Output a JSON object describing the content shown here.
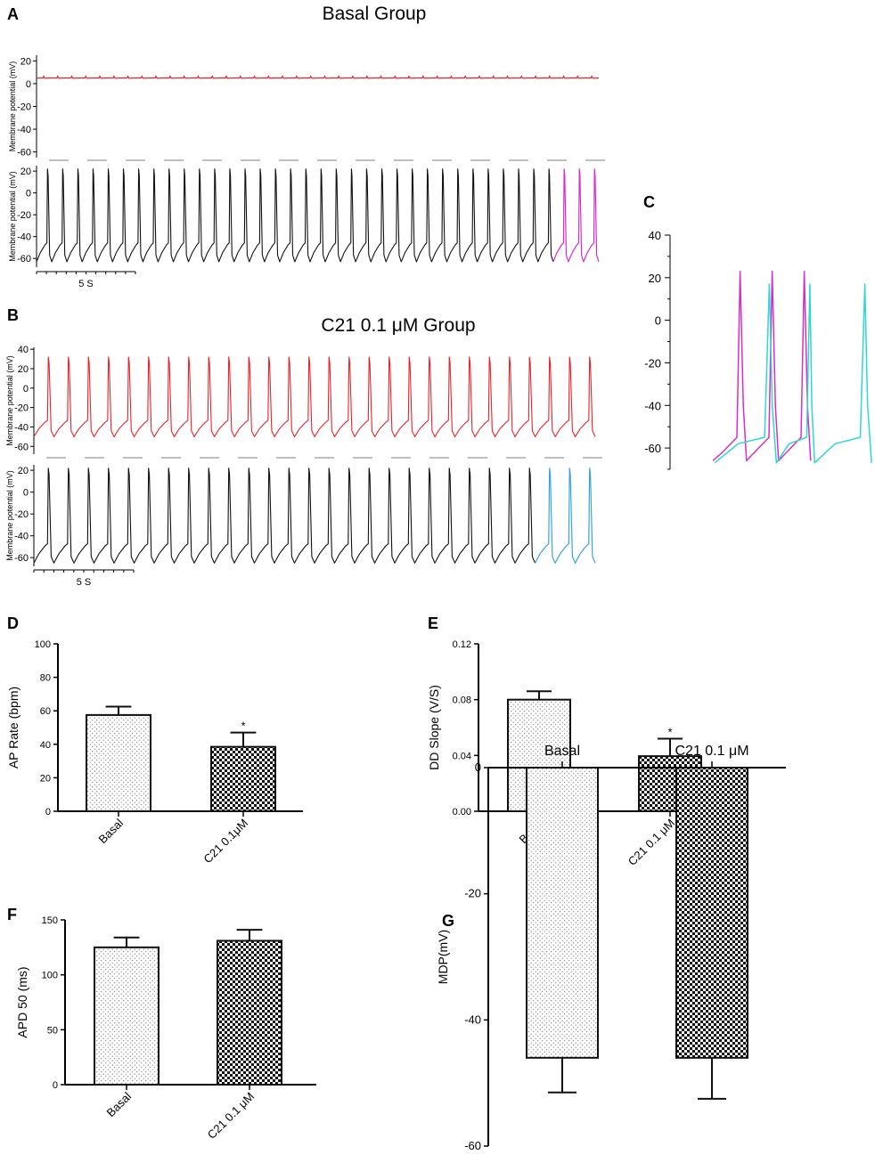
{
  "figure": {
    "panels": {
      "A": "A",
      "B": "B",
      "C": "C",
      "D": "D",
      "E": "E",
      "F": "F",
      "G": "G"
    }
  },
  "colors": {
    "red": "#e8232b",
    "black": "#111111",
    "magenta": "#d42fc8",
    "blue": "#3aa4dc",
    "cyan": "#2fd6d6",
    "axis": "#000000",
    "divider": "#999999"
  },
  "chart_data": [
    {
      "panel": "A",
      "type": "line",
      "title": "Basal Group",
      "scale_label": "5 S",
      "traces": [
        {
          "name": "top trace",
          "ylabel": "Membrane potential (mV)",
          "ylim": [
            -65,
            25
          ],
          "yticks": [
            20,
            0,
            -20,
            -40,
            -60
          ],
          "tick_labels": [
            "20",
            "0",
            "-20",
            "-40",
            "-60"
          ],
          "color_key": "red",
          "baseline_mv": 5,
          "beats": 40,
          "peak_mv": 6.5,
          "trough_mv": 5
        },
        {
          "name": "bottom trace",
          "ylabel": "Membrane potential (mV)",
          "ylim": [
            -68,
            25
          ],
          "yticks": [
            20,
            0,
            -20,
            -40,
            -60
          ],
          "tick_labels": [
            "20",
            "0",
            "-20",
            "-40",
            "-60"
          ],
          "color_key": "black",
          "highlight_color_key": "magenta",
          "highlight_last": 3,
          "beats": 37,
          "peak_mv": 22,
          "trough_mv": -63
        }
      ]
    },
    {
      "panel": "B",
      "type": "line",
      "title": "C21  0.1 μM  Group",
      "scale_label": "5 S",
      "traces": [
        {
          "name": "top trace",
          "ylabel": "Membrane potential (mV)",
          "ylim": [
            -68,
            42
          ],
          "yticks": [
            40,
            20,
            0,
            -20,
            -40,
            -60
          ],
          "tick_labels": [
            "40",
            "20",
            "0",
            "-20",
            "-40",
            "-60"
          ],
          "color_key": "red",
          "beats": 28,
          "peak_mv": 32,
          "trough_mv": -50
        },
        {
          "name": "bottom trace",
          "ylabel": "Membrane potential (mV)",
          "ylim": [
            -68,
            25
          ],
          "yticks": [
            20,
            0,
            -20,
            -40,
            -60
          ],
          "tick_labels": [
            "20",
            "0",
            "-20",
            "-40",
            "-60"
          ],
          "color_key": "black",
          "highlight_color_key": "blue",
          "highlight_last": 3,
          "beats": 28,
          "peak_mv": 22,
          "trough_mv": -65
        }
      ]
    },
    {
      "panel": "C",
      "type": "line",
      "ylim": [
        -70,
        40
      ],
      "yticks": [
        40,
        20,
        0,
        -20,
        -40,
        -60
      ],
      "tick_labels": [
        "40",
        "20",
        "0",
        "-20",
        "-40",
        "-60"
      ],
      "series": [
        {
          "name": "basal overlay",
          "color_key": "magenta",
          "beats": 3,
          "peak_mv": 23,
          "trough_mv": -66
        },
        {
          "name": "C21 overlay",
          "color_key": "cyan",
          "beats": 3,
          "peak_mv": 17,
          "trough_mv": -67
        }
      ]
    },
    {
      "panel": "D",
      "type": "bar",
      "ylabel": "AP Rate (bpm)",
      "ylim": [
        0,
        100
      ],
      "yticks": [
        0,
        20,
        40,
        60,
        80,
        100
      ],
      "tick_labels": [
        "0",
        "20",
        "40",
        "60",
        "80",
        "100"
      ],
      "categories": [
        "Basal",
        "C21 0.1μM"
      ],
      "values": [
        57.5,
        38.5
      ],
      "errors": [
        5,
        8.5
      ],
      "significance": [
        "",
        "*"
      ]
    },
    {
      "panel": "E",
      "type": "bar",
      "ylabel": "DD Slope (V/S)",
      "ylim": [
        0,
        0.12
      ],
      "yticks": [
        0,
        0.04,
        0.08,
        0.12
      ],
      "tick_labels": [
        "0.00",
        "0.04",
        "0.08",
        "0.12"
      ],
      "categories": [
        "Basal",
        "C21 0.1 μM"
      ],
      "values": [
        0.08,
        0.0395
      ],
      "errors": [
        0.006,
        0.0125
      ],
      "significance": [
        "",
        "*"
      ]
    },
    {
      "panel": "F",
      "type": "bar",
      "ylabel": "APD 50 (ms)",
      "ylim": [
        0,
        150
      ],
      "yticks": [
        0,
        50,
        100,
        150
      ],
      "tick_labels": [
        "0",
        "50",
        "100",
        "150"
      ],
      "categories": [
        "Basal",
        "C21 0.1 μM"
      ],
      "values": [
        125,
        131
      ],
      "errors": [
        9,
        10
      ],
      "significance": [
        "",
        ""
      ]
    },
    {
      "panel": "G",
      "type": "bar",
      "ylabel": "MDP(mV)",
      "ylim": [
        -60,
        0
      ],
      "yticks": [
        0,
        -20,
        -40,
        -60
      ],
      "tick_labels": [
        "0",
        "-20",
        "-40",
        "-60"
      ],
      "categories": [
        "Basal",
        "C21 0.1 μM"
      ],
      "values": [
        -46,
        -46
      ],
      "errors": [
        5.5,
        6.5
      ],
      "significance": [
        "",
        ""
      ]
    }
  ]
}
